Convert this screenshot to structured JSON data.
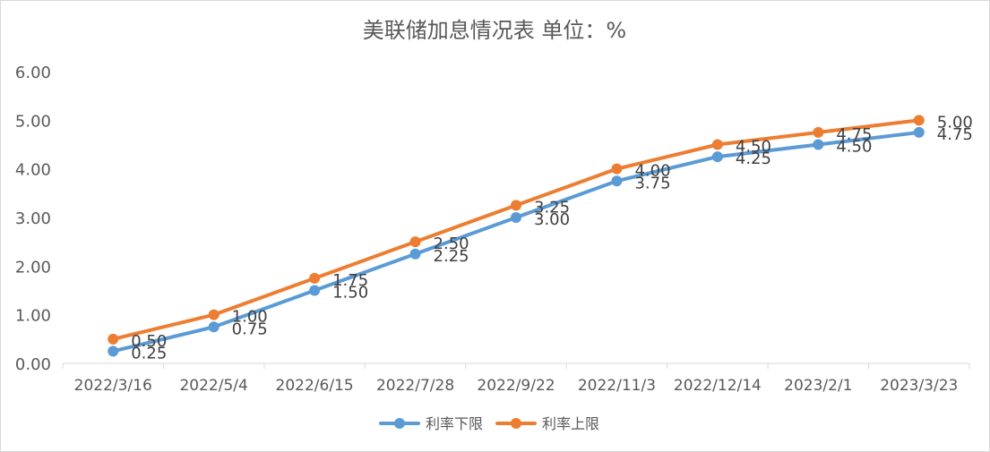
{
  "chart_data": {
    "type": "line",
    "title": "美联储加息情况表  单位：%",
    "categories": [
      "2022/3/16",
      "2022/5/4",
      "2022/6/15",
      "2022/7/28",
      "2022/9/22",
      "2022/11/3",
      "2022/12/14",
      "2023/2/1",
      "2023/3/23"
    ],
    "series": [
      {
        "name": "利率下限",
        "color": "#5b9bd5",
        "values": [
          0.25,
          0.75,
          1.5,
          2.25,
          3.0,
          3.75,
          4.25,
          4.5,
          4.75
        ]
      },
      {
        "name": "利率上限",
        "color": "#ed7d31",
        "values": [
          0.5,
          1.0,
          1.75,
          2.5,
          3.25,
          4.0,
          4.5,
          4.75,
          5.0
        ]
      }
    ],
    "ylim": [
      0,
      6
    ],
    "yticks": [
      "0.00",
      "1.00",
      "2.00",
      "3.00",
      "4.00",
      "5.00",
      "6.00"
    ],
    "grid": false,
    "legend": "bottom"
  }
}
